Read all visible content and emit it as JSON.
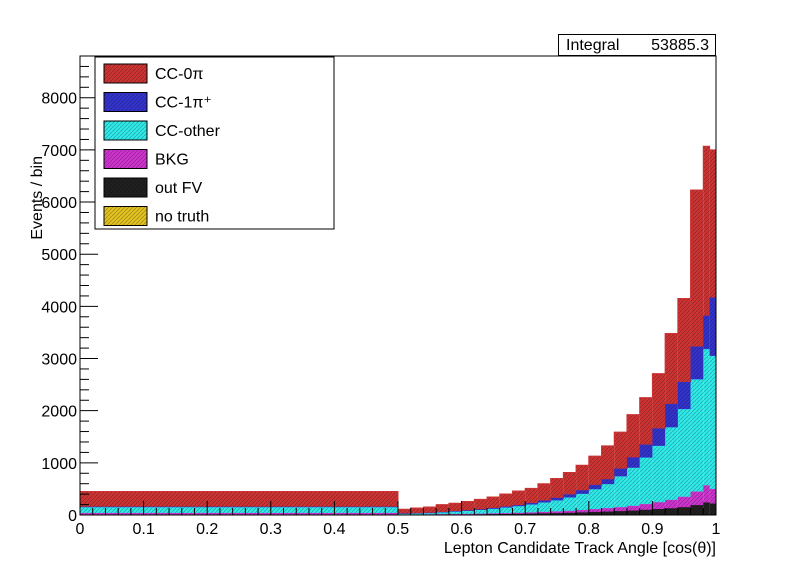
{
  "stats": {
    "label": "Integral",
    "value": "53885.3"
  },
  "chart_data": {
    "type": "stacked-histogram",
    "xlabel": "Lepton Candidate Track Angle [cos(θ)]",
    "ylabel": "Events / bin",
    "xlim": [
      0,
      1
    ],
    "ylim": [
      0,
      8800
    ],
    "x_ticks": [
      "0",
      "0.1",
      "0.2",
      "0.3",
      "0.4",
      "0.5",
      "0.6",
      "0.7",
      "0.8",
      "0.9",
      "1"
    ],
    "y_ticks": [
      "0",
      "1000",
      "2000",
      "3000",
      "4000",
      "5000",
      "6000",
      "7000",
      "8000"
    ],
    "bin_edges": [
      0,
      0.5,
      0.52,
      0.54,
      0.56,
      0.58,
      0.6,
      0.62,
      0.64,
      0.66,
      0.68,
      0.7,
      0.72,
      0.74,
      0.76,
      0.78,
      0.8,
      0.82,
      0.84,
      0.86,
      0.88,
      0.9,
      0.92,
      0.94,
      0.96,
      0.98,
      0.99,
      1.0
    ],
    "series": [
      {
        "name": "no truth",
        "color": "#e0c020",
        "values": [
          0,
          0,
          0,
          0,
          0,
          0,
          0,
          0,
          0,
          0,
          0,
          0,
          0,
          0,
          0,
          0,
          0,
          0,
          0,
          0,
          0,
          0,
          0,
          0,
          0,
          0,
          0
        ]
      },
      {
        "name": "out FV",
        "color": "#202020",
        "values": [
          10,
          5,
          5,
          6,
          8,
          10,
          12,
          14,
          17,
          20,
          23,
          27,
          32,
          37,
          43,
          50,
          58,
          66,
          75,
          85,
          100,
          115,
          130,
          150,
          190,
          240,
          220
        ]
      },
      {
        "name": "BKG",
        "color": "#cc33cc",
        "values": [
          30,
          5,
          5,
          6,
          8,
          10,
          10,
          12,
          15,
          17,
          20,
          23,
          27,
          32,
          37,
          45,
          55,
          65,
          75,
          90,
          110,
          130,
          160,
          200,
          260,
          330,
          280
        ]
      },
      {
        "name": "CC-other",
        "color": "#30e8e8",
        "values": [
          110,
          15,
          20,
          25,
          35,
          45,
          55,
          70,
          85,
          105,
          125,
          150,
          180,
          210,
          255,
          310,
          380,
          460,
          590,
          730,
          890,
          1080,
          1390,
          1680,
          2150,
          2610,
          2550
        ]
      },
      {
        "name": "CC-1π⁺",
        "color": "#3333cc",
        "values": [
          10,
          5,
          5,
          6,
          8,
          10,
          12,
          14,
          17,
          20,
          22,
          30,
          40,
          50,
          60,
          70,
          85,
          95,
          150,
          200,
          250,
          335,
          450,
          520,
          630,
          640,
          1120
        ]
      },
      {
        "name": "CC-0π",
        "color": "#cc3333",
        "values": [
          290,
          80,
          100,
          110,
          140,
          150,
          170,
          190,
          210,
          240,
          270,
          280,
          320,
          370,
          420,
          480,
          550,
          640,
          700,
          820,
          900,
          1050,
          1350,
          1600,
          3000,
          3250,
          2830
        ]
      }
    ],
    "legend": {
      "position": "top-left",
      "entries": [
        "CC-0π",
        "CC-1π⁺",
        "CC-other",
        "BKG",
        "out FV",
        "no truth"
      ]
    },
    "grid": false
  }
}
